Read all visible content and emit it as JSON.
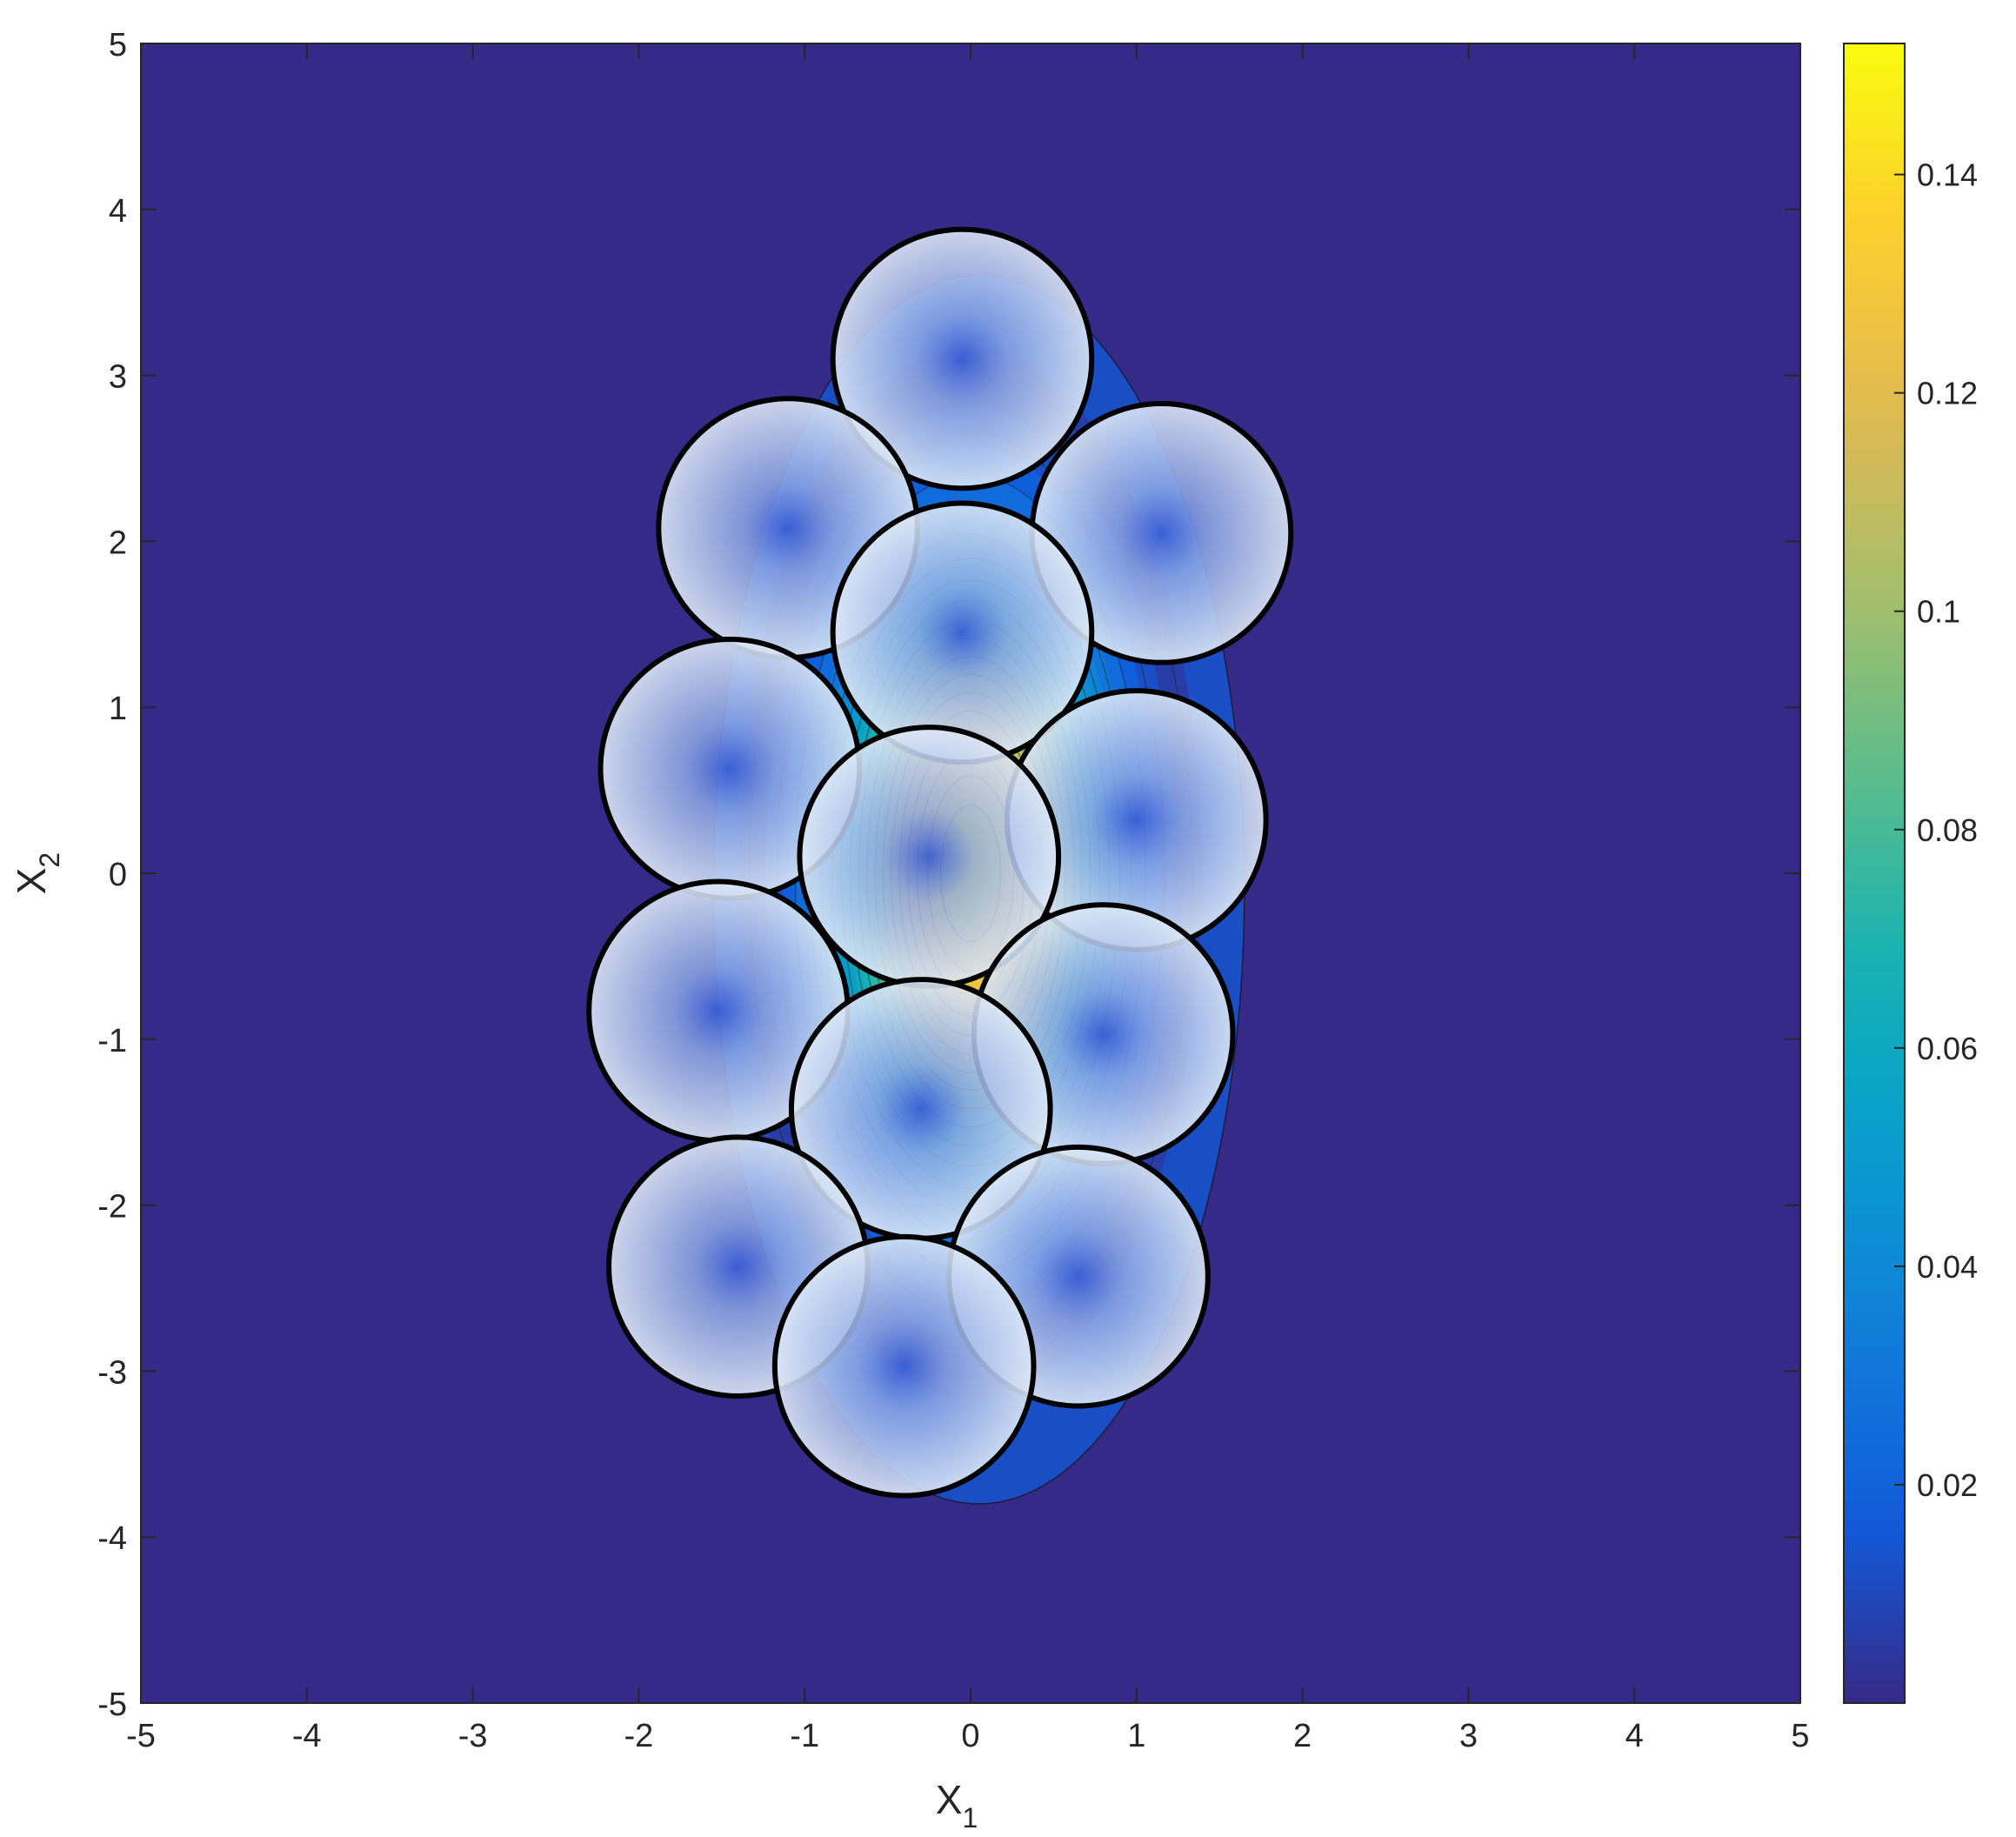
{
  "chart_data": {
    "type": "heatmap",
    "title": "",
    "xlabel": "X",
    "xlabel_sub": "1",
    "ylabel": "X",
    "ylabel_sub": "2",
    "xlim": [
      -5,
      5
    ],
    "ylim": [
      -5,
      5
    ],
    "xticks": [
      -5,
      -4,
      -3,
      -2,
      -1,
      0,
      1,
      2,
      3,
      4,
      5
    ],
    "yticks": [
      -5,
      -4,
      -3,
      -2,
      -1,
      0,
      1,
      2,
      3,
      4,
      5
    ],
    "grid": false,
    "colormap": "parula",
    "colorbar": {
      "range": [
        0,
        0.152
      ],
      "ticks": [
        0.02,
        0.04,
        0.06,
        0.08,
        0.1,
        0.12,
        0.14
      ],
      "tick_labels": [
        "0.02",
        "0.04",
        "0.06",
        "0.08",
        "0.1",
        "0.12",
        "0.14"
      ]
    },
    "density": {
      "description_shape": "elliptical density centred at origin",
      "center": [
        0,
        0
      ],
      "sigma_x1": 0.55,
      "sigma_x2": 1.25,
      "peak": 0.152,
      "support_boundary": {
        "cx": 0.05,
        "cy": -0.1,
        "rx": 1.6,
        "ry": 3.7
      }
    },
    "circles": [
      {
        "cx": -0.05,
        "cy": 3.1,
        "r": 0.78
      },
      {
        "cx": -1.1,
        "cy": 2.08,
        "r": 0.78
      },
      {
        "cx": 1.15,
        "cy": 2.05,
        "r": 0.78
      },
      {
        "cx": -0.05,
        "cy": 1.45,
        "r": 0.78
      },
      {
        "cx": -1.45,
        "cy": 0.63,
        "r": 0.78
      },
      {
        "cx": 1.0,
        "cy": 0.32,
        "r": 0.78
      },
      {
        "cx": -0.25,
        "cy": 0.1,
        "r": 0.78
      },
      {
        "cx": -1.52,
        "cy": -0.83,
        "r": 0.78
      },
      {
        "cx": 0.8,
        "cy": -0.97,
        "r": 0.78
      },
      {
        "cx": -0.3,
        "cy": -1.42,
        "r": 0.78
      },
      {
        "cx": -1.4,
        "cy": -2.37,
        "r": 0.78
      },
      {
        "cx": 0.65,
        "cy": -2.43,
        "r": 0.78
      },
      {
        "cx": -0.4,
        "cy": -2.97,
        "r": 0.78
      }
    ]
  },
  "colors": {
    "background": "#352a87",
    "circle_outline": "#000000",
    "circle_fill": "#dde8f6"
  }
}
